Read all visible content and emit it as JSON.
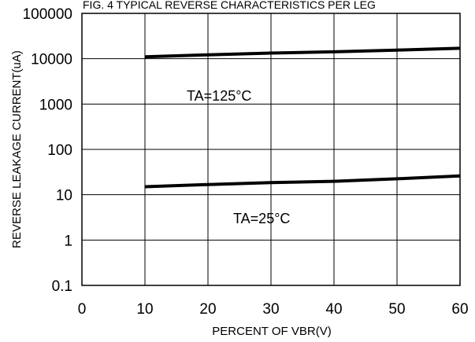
{
  "chart_data": {
    "type": "line",
    "title": "FIG. 4 TYPICAL REVERSE CHARACTERISTICS PER LEG",
    "xlabel": "PERCENT OF VBR(V)",
    "ylabel": "REVERSE LEAKAGE CURRENT(uA)",
    "xlim": [
      0,
      60
    ],
    "ylim": [
      0.1,
      100000
    ],
    "y_scale": "log",
    "grid": true,
    "x_ticks": [
      "0",
      "10",
      "20",
      "30",
      "40",
      "50",
      "60"
    ],
    "y_ticks": [
      "0.1",
      "1",
      "10",
      "100",
      "1000",
      "10000",
      "100000"
    ],
    "series": [
      {
        "x": [
          10,
          20,
          30,
          40,
          50,
          60
        ],
        "y": [
          11000,
          12200,
          13300,
          14200,
          15500,
          17000
        ]
      },
      {
        "x": [
          10,
          20,
          30,
          40,
          50,
          60
        ],
        "y": [
          15,
          16.8,
          18.5,
          19.8,
          22.5,
          26
        ]
      }
    ],
    "annotations": [
      "TA=125°C",
      "TA=25°C"
    ]
  }
}
